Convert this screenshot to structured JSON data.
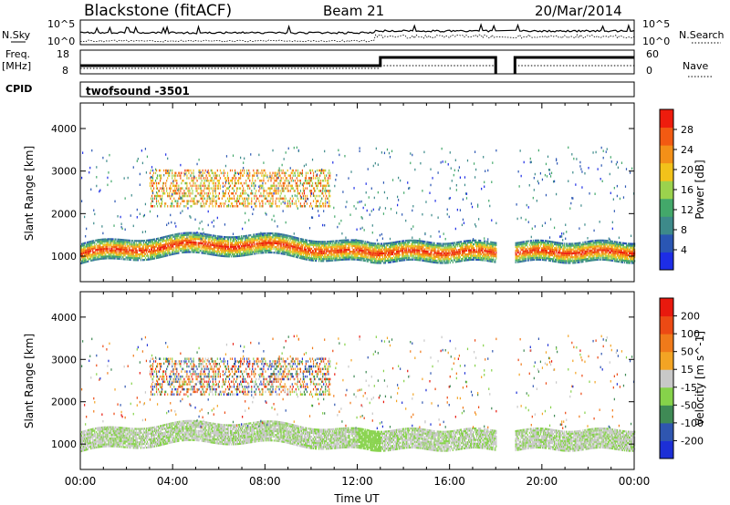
{
  "header": {
    "title": "Blackstone (fitACF)",
    "beam": "Beam 21",
    "date": "20/Mar/2014"
  },
  "panels": {
    "nsky": {
      "label": "N.Sky",
      "ticks": [
        "10^5",
        "10^0"
      ],
      "right_label": "N.Search",
      "right_ticks": [
        "10^5",
        "10^0"
      ]
    },
    "freq": {
      "label1": "Freq.",
      "label2": "[MHz]",
      "ticks": [
        "18",
        "8"
      ],
      "right_label": "Nave",
      "right_ticks": [
        "60",
        "0"
      ]
    },
    "cpid": {
      "label": "CPID",
      "value": "twofsound -3501"
    }
  },
  "chart_data": [
    {
      "type": "heatmap",
      "title": "",
      "ylabel": "Slant Range [km]",
      "y_ticks": [
        "4000",
        "3000",
        "2000",
        "1000"
      ],
      "ylim": [
        400,
        4600
      ],
      "colorbar": {
        "label": "Power [dB]",
        "ticks": [
          "28",
          "24",
          "20",
          "16",
          "12",
          "8",
          "4"
        ],
        "range": [
          0,
          32
        ],
        "colors": [
          "#1d2de6",
          "#2a56b3",
          "#3d8a8a",
          "#43a86a",
          "#9bd24d",
          "#f2c21a",
          "#f39018",
          "#f25a12",
          "#ee1c0d"
        ]
      },
      "data_gap_utc": [
        "18:00",
        "18:50"
      ],
      "features": [
        {
          "name": "ground-scatter band",
          "utc": [
            "00:00",
            "24:00"
          ],
          "range_km": [
            1000,
            1400
          ],
          "power_db": [
            16,
            30
          ]
        },
        {
          "name": "F-region echoes",
          "utc": [
            "03:00",
            "10:30"
          ],
          "range_km": [
            2200,
            3100
          ],
          "power_db": [
            12,
            28
          ]
        }
      ]
    },
    {
      "type": "heatmap",
      "title": "",
      "ylabel": "Slant Range [km]",
      "xlabel": "Time UT",
      "x_ticks": [
        "00:00",
        "04:00",
        "08:00",
        "12:00",
        "16:00",
        "20:00",
        "00:00"
      ],
      "y_ticks": [
        "4000",
        "3000",
        "2000",
        "1000"
      ],
      "ylim": [
        400,
        4600
      ],
      "colorbar": {
        "label": "Velocity [m s^-1]",
        "ticks": [
          "200",
          "100",
          "50",
          "15",
          "-15",
          "-50",
          "-100",
          "-200"
        ],
        "range": [
          -250,
          250
        ],
        "colors": [
          "#1c2fd6",
          "#2f56b0",
          "#3f8a55",
          "#86d24a",
          "#c8c8c8",
          "#f3a424",
          "#f07a1a",
          "#ec4a14",
          "#e8190e"
        ]
      },
      "data_gap_utc": [
        "18:00",
        "18:50"
      ]
    }
  ]
}
